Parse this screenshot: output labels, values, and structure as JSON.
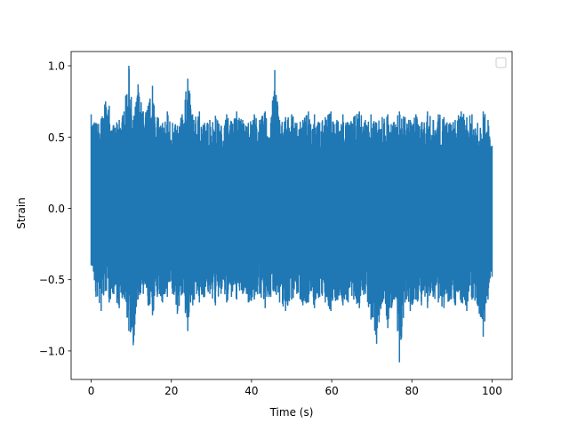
{
  "chart_data": {
    "type": "line",
    "xlabel": "Time (s)",
    "ylabel": "Strain",
    "xlim": [
      -5,
      105
    ],
    "ylim": [
      -1.2,
      1.1
    ],
    "x_ticks": [
      0,
      20,
      40,
      60,
      80,
      100
    ],
    "x_tick_labels": [
      "0",
      "20",
      "40",
      "60",
      "80",
      "100"
    ],
    "y_ticks": [
      -1.0,
      -0.5,
      0.0,
      0.5,
      1.0
    ],
    "y_tick_labels": [
      "−1.0",
      "−0.5",
      "0.0",
      "0.5",
      "1.0"
    ],
    "grid": false,
    "legend": {
      "placement": "top-right",
      "entries": []
    },
    "line_color": "#1f77b4",
    "x_range": [
      0,
      100
    ],
    "series": [
      {
        "x": [
          0,
          1.2,
          2.5,
          3.6,
          4.5,
          5.5,
          7.0,
          8.2,
          9.4,
          10.5,
          11.7,
          13.0,
          14.2,
          15.3,
          16.5,
          17.8,
          19.0,
          20.3,
          21.5,
          22.7,
          24.1,
          25.6,
          27.0,
          28.3,
          29.6,
          31.0,
          32.4,
          33.8,
          35.0,
          36.3,
          37.8,
          39.2,
          40.7,
          42.0,
          43.4,
          44.8,
          45.8,
          47.0,
          48.5,
          50.0,
          51.3,
          52.8,
          54.2,
          55.7,
          57.0,
          58.4,
          59.8,
          61.3,
          62.8,
          64.1,
          65.5,
          66.9,
          68.4,
          69.8,
          71.2,
          72.6,
          74.0,
          75.4,
          76.9,
          78.3,
          79.6,
          81.0,
          82.4,
          83.9,
          85.3,
          86.6,
          88.0,
          89.5,
          90.8,
          92.3,
          93.7,
          95.0,
          96.4,
          97.8,
          99.0,
          100.0
        ],
        "upper": [
          0.66,
          0.6,
          0.63,
          0.75,
          0.72,
          0.58,
          0.62,
          0.68,
          1.0,
          0.62,
          0.87,
          0.68,
          0.72,
          0.86,
          0.64,
          0.6,
          0.68,
          0.6,
          0.58,
          0.66,
          0.91,
          0.62,
          0.68,
          0.6,
          0.62,
          0.65,
          0.58,
          0.66,
          0.61,
          0.68,
          0.62,
          0.6,
          0.66,
          0.62,
          0.68,
          0.6,
          0.97,
          0.62,
          0.64,
          0.66,
          0.6,
          0.62,
          0.68,
          0.66,
          0.6,
          0.64,
          0.68,
          0.62,
          0.66,
          0.6,
          0.64,
          0.68,
          0.62,
          0.66,
          0.6,
          0.64,
          0.66,
          0.6,
          0.68,
          0.64,
          0.62,
          0.66,
          0.6,
          0.68,
          0.62,
          0.66,
          0.64,
          0.6,
          0.62,
          0.68,
          0.64,
          0.66,
          0.6,
          0.68,
          0.62,
          0.44
        ],
        "lower": [
          -0.4,
          -0.62,
          -0.72,
          -0.58,
          -0.66,
          -0.6,
          -0.7,
          -0.62,
          -0.86,
          -0.96,
          -0.64,
          -0.6,
          -0.68,
          -0.75,
          -0.62,
          -0.66,
          -0.62,
          -0.6,
          -0.74,
          -0.6,
          -0.86,
          -0.64,
          -0.66,
          -0.62,
          -0.6,
          -0.68,
          -0.6,
          -0.66,
          -0.62,
          -0.64,
          -0.6,
          -0.66,
          -0.64,
          -0.6,
          -0.7,
          -0.62,
          -0.58,
          -0.66,
          -0.72,
          -0.64,
          -0.6,
          -0.68,
          -0.66,
          -0.7,
          -0.62,
          -0.66,
          -0.72,
          -0.64,
          -0.68,
          -0.66,
          -0.64,
          -0.7,
          -0.6,
          -0.78,
          -0.95,
          -0.66,
          -0.84,
          -0.64,
          -1.08,
          -0.66,
          -0.72,
          -0.64,
          -0.68,
          -0.7,
          -0.62,
          -0.66,
          -0.7,
          -0.64,
          -0.68,
          -0.66,
          -0.72,
          -0.64,
          -0.68,
          -0.9,
          -0.64,
          -0.48
        ]
      }
    ]
  }
}
